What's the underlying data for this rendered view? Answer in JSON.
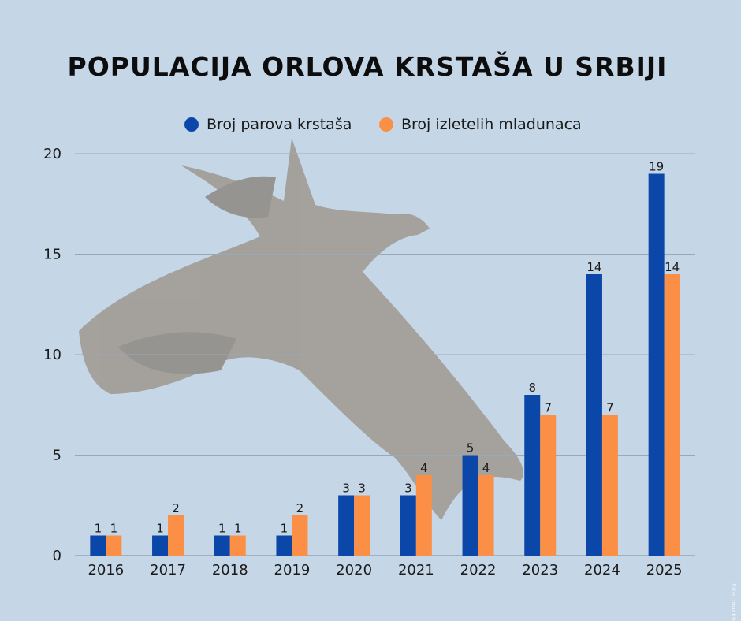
{
  "chart_data": {
    "type": "bar",
    "title": "POPULACIJA ORLOVA KRSTAŠA U SRBIJI",
    "categories": [
      "2016",
      "2017",
      "2018",
      "2019",
      "2020",
      "2021",
      "2022",
      "2023",
      "2024",
      "2025"
    ],
    "series": [
      {
        "name": "Broj parova krstaša",
        "color": "#0a47a9",
        "values": [
          1,
          1,
          1,
          1,
          3,
          3,
          5,
          8,
          14,
          19
        ]
      },
      {
        "name": "Broj izletelih mladunaca",
        "color": "#fb8f45",
        "values": [
          1,
          2,
          1,
          2,
          3,
          4,
          4,
          7,
          7,
          14
        ]
      }
    ],
    "ylim": [
      0,
      20
    ],
    "yticks": [
      0,
      5,
      10,
      15,
      20
    ],
    "grid": true,
    "legend": "top-center",
    "credit": "foto: muckleng"
  }
}
